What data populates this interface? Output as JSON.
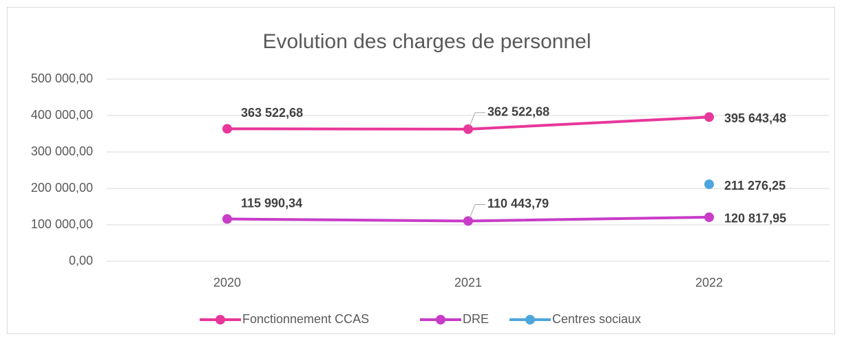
{
  "chart_data": {
    "type": "line",
    "title": "Evolution des charges de personnel",
    "categories": [
      "2020",
      "2021",
      "2022"
    ],
    "series": [
      {
        "name": "Fonctionnement CCAS",
        "color": "#e8379a",
        "values": [
          363522.68,
          362522.68,
          395643.48
        ],
        "value_labels": [
          "363 522,68",
          "362 522,68",
          "395 643,48"
        ]
      },
      {
        "name": "DRE",
        "color": "#c83cc8",
        "values": [
          115990.34,
          110443.79,
          120817.95
        ],
        "value_labels": [
          "115 990,34",
          "110 443,79",
          "120 817,95"
        ]
      },
      {
        "name": "Centres sociaux",
        "color": "#4ea6dc",
        "values": [
          null,
          null,
          211276.25
        ],
        "value_labels": [
          null,
          null,
          "211 276,25"
        ]
      }
    ],
    "ylim": [
      0,
      500000
    ],
    "yticks": [
      {
        "value": 0,
        "label": "0,00"
      },
      {
        "value": 100000,
        "label": "100 000,00"
      },
      {
        "value": 200000,
        "label": "200 000,00"
      },
      {
        "value": 300000,
        "label": "300 000,00"
      },
      {
        "value": 400000,
        "label": "400 000,00"
      },
      {
        "value": 500000,
        "label": "500 000,00"
      }
    ],
    "grid": true,
    "legend": "bottom"
  }
}
